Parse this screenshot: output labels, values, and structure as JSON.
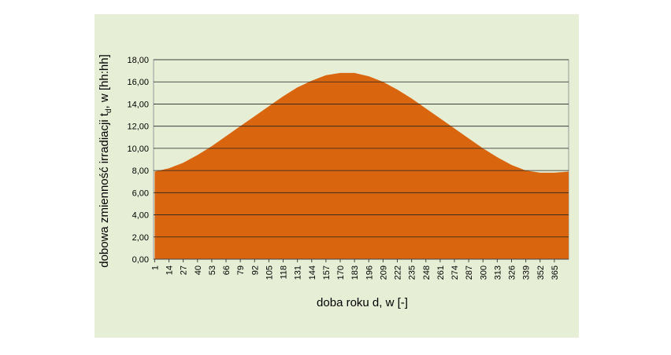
{
  "chart_data": {
    "type": "area",
    "x": [
      1,
      14,
      27,
      40,
      53,
      66,
      79,
      92,
      105,
      118,
      131,
      144,
      157,
      170,
      183,
      196,
      209,
      222,
      235,
      248,
      261,
      274,
      287,
      300,
      313,
      326,
      339,
      352,
      365,
      378
    ],
    "values": [
      7.9,
      8.2,
      8.7,
      9.4,
      10.2,
      11.1,
      12.0,
      12.9,
      13.8,
      14.7,
      15.5,
      16.1,
      16.6,
      16.8,
      16.8,
      16.5,
      16.0,
      15.3,
      14.5,
      13.6,
      12.7,
      11.8,
      10.9,
      10.0,
      9.2,
      8.5,
      8.0,
      7.8,
      7.8,
      7.9
    ],
    "color": "#d9660f",
    "xlim": [
      0,
      378
    ],
    "xticks": [
      1,
      14,
      27,
      40,
      53,
      66,
      79,
      92,
      105,
      118,
      131,
      144,
      157,
      170,
      183,
      196,
      209,
      222,
      235,
      248,
      261,
      274,
      287,
      300,
      313,
      326,
      339,
      352,
      365
    ],
    "ylim": [
      0,
      18
    ],
    "yticks": [
      {
        "value": 0,
        "label": "0,00"
      },
      {
        "value": 2,
        "label": "2,00"
      },
      {
        "value": 4,
        "label": "4,00"
      },
      {
        "value": 6,
        "label": "6,00"
      },
      {
        "value": 8,
        "label": "8,00"
      },
      {
        "value": 10,
        "label": "10,00"
      },
      {
        "value": 12,
        "label": "12,00"
      },
      {
        "value": 14,
        "label": "14,00"
      },
      {
        "value": 16,
        "label": "16,00"
      },
      {
        "value": 18,
        "label": "18,00"
      }
    ],
    "grid": true,
    "xlabel": "doba roku d, w [-]",
    "ylabel": {
      "main": "dobowa zmienność irradiacji t",
      "sub": "d",
      "rest": ", w [hh:hh]"
    }
  }
}
